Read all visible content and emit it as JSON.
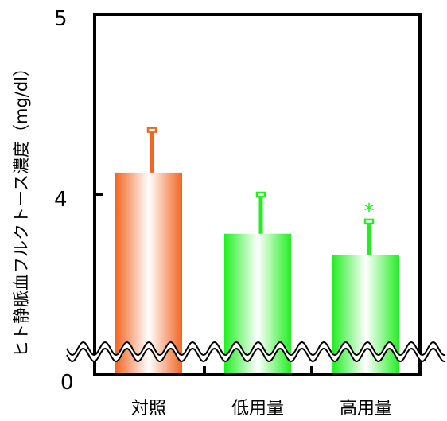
{
  "chart_data": {
    "type": "bar",
    "ylabel": "ヒト静脈血フルクトース濃度（mg/dl）",
    "categories": [
      "対照",
      "低用量",
      "高用量"
    ],
    "values": [
      4.12,
      3.78,
      3.66
    ],
    "errors": [
      0.24,
      0.22,
      0.19
    ],
    "significance": [
      "",
      "",
      "*"
    ],
    "colors": [
      "#f26522",
      "#22ee22",
      "#22ee22"
    ],
    "significance_color": "#22ee22",
    "yticks": [
      "0",
      "4",
      "5"
    ],
    "ylim": [
      0,
      5
    ],
    "axis_break": "between 0 and 4 (wavy break line)"
  }
}
